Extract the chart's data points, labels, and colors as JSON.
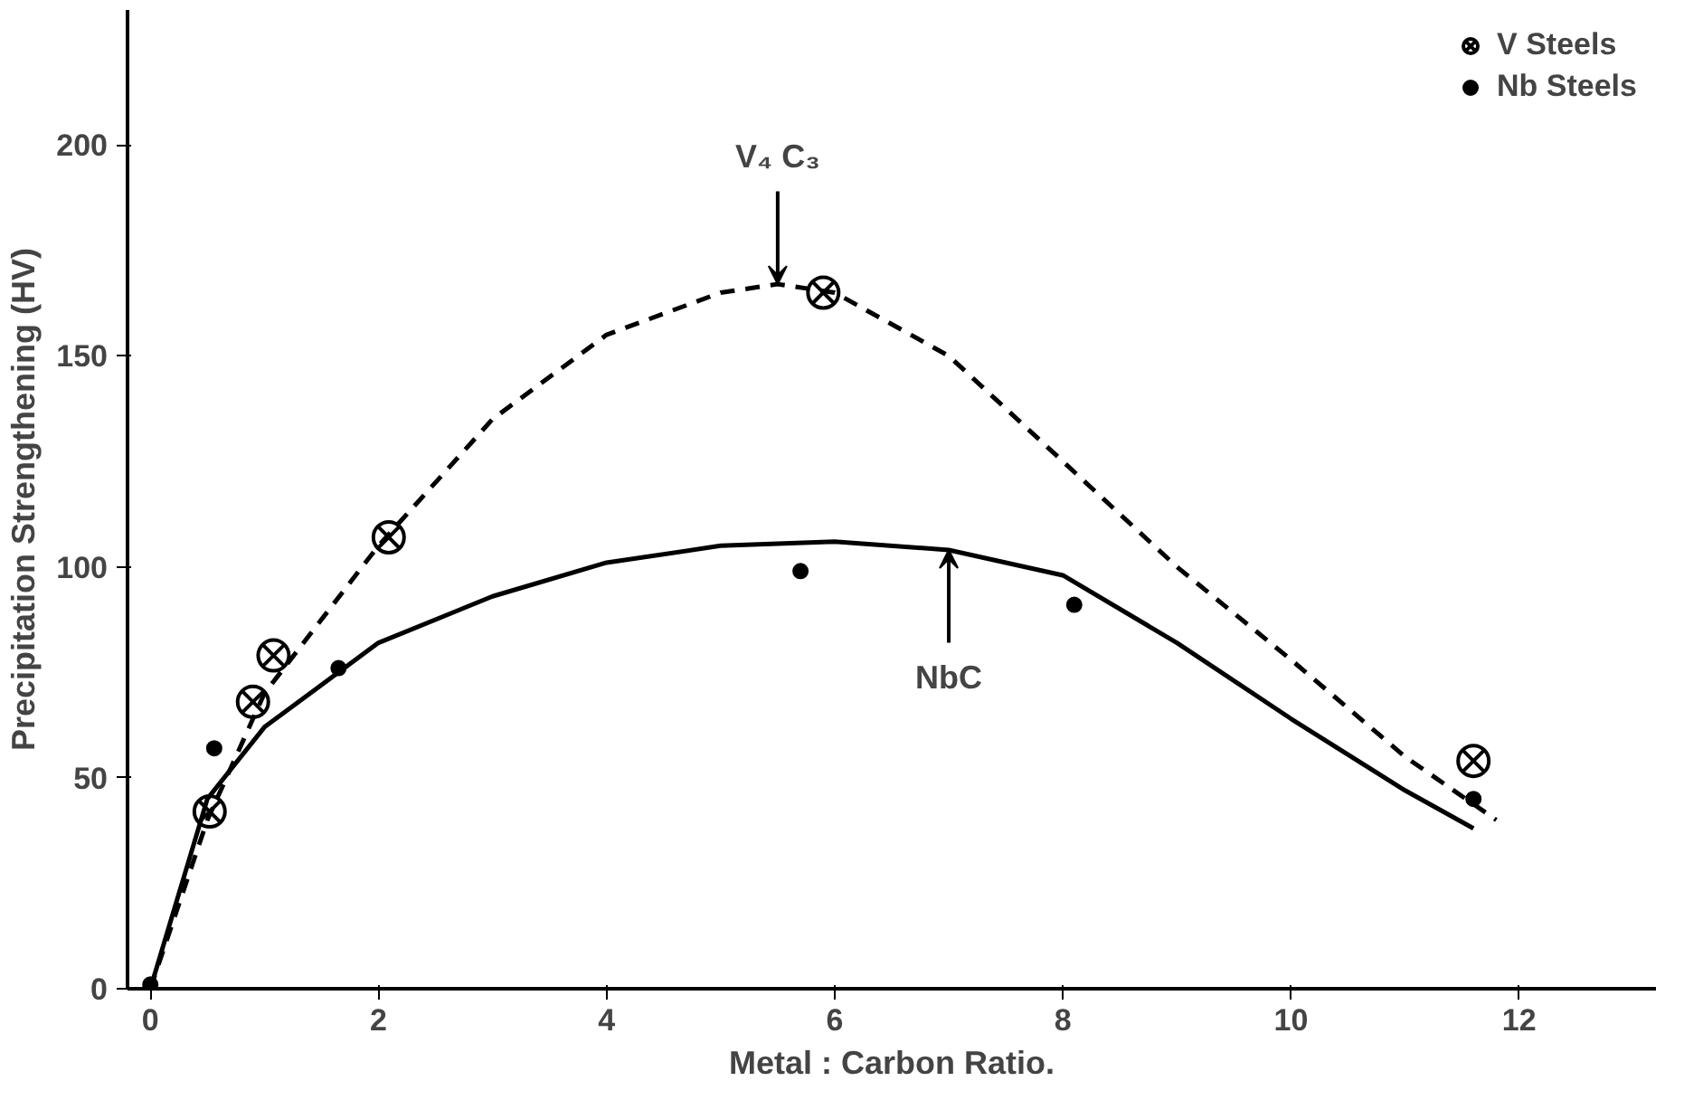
{
  "chart_data": {
    "type": "scatter",
    "xlabel": "Metal : Carbon Ratio.",
    "ylabel": "Precipitation Strengthening (HV)",
    "xlim": [
      -0.2,
      13.2
    ],
    "ylim": [
      0,
      232
    ],
    "xticks": [
      0,
      2,
      4,
      6,
      8,
      10,
      12
    ],
    "yticks": [
      0,
      50,
      100,
      150,
      200
    ],
    "grid": false,
    "legend": "top right",
    "series": [
      {
        "name": "V Steels",
        "marker": "cross",
        "color": "#000000",
        "x": [
          0.52,
          0.9,
          1.08,
          2.09,
          5.9,
          11.6
        ],
        "values": [
          42,
          68,
          79,
          107,
          165,
          54
        ]
      },
      {
        "name": "Nb Steels",
        "marker": "circle",
        "color": "#000000",
        "x": [
          0,
          0.56,
          1.65,
          5.7,
          8.1,
          11.6
        ],
        "values": [
          1,
          57,
          76,
          99,
          91,
          45
        ]
      },
      {
        "type": "line",
        "line_style": "dashed",
        "color": "#000000",
        "x": [
          0,
          0.5,
          1,
          2,
          3,
          4,
          5,
          5.5,
          6,
          7,
          8,
          9,
          10,
          11,
          11.8
        ],
        "values": [
          0,
          40,
          70,
          105,
          135,
          155,
          165,
          167,
          165,
          150,
          125,
          100,
          78,
          55,
          40
        ]
      },
      {
        "type": "line",
        "line_style": "solid",
        "color": "#000000",
        "x": [
          0,
          0.5,
          1,
          2,
          3,
          4,
          5,
          6,
          7,
          8,
          9,
          10,
          11,
          11.6
        ],
        "values": [
          0,
          45,
          62,
          82,
          93,
          101,
          105,
          106,
          104,
          98,
          82,
          64,
          47,
          38
        ]
      }
    ],
    "annotations": [
      {
        "text": "V₄ C₃",
        "x": 5.5,
        "y": 167
      },
      {
        "text": "NbC",
        "x": 7,
        "y": 104
      }
    ]
  }
}
